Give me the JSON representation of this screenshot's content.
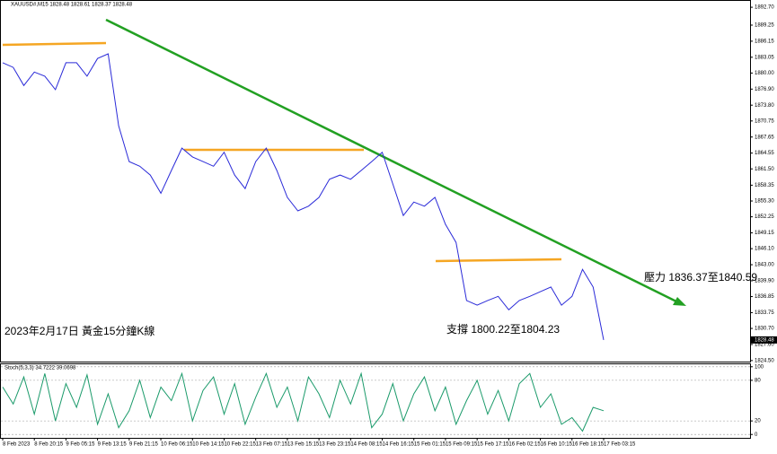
{
  "chart_data": [
    {
      "type": "line",
      "title": "XAUUSD#,M15  1828.48 1828.61 1828.37 1828.48",
      "color": "#2a2ad8",
      "categories": [
        "8 Feb 2023",
        null,
        null,
        "8 Feb 20:15",
        null,
        null,
        "9 Feb 05:15",
        null,
        null,
        "9 Feb 13:15",
        null,
        null,
        "9 Feb 21:15",
        null,
        null,
        "10 Feb 06:15",
        null,
        null,
        "10 Feb 14:15",
        null,
        null,
        "10 Feb 22:15",
        null,
        null,
        "13 Feb 07:15",
        null,
        null,
        "13 Feb 15:15",
        null,
        null,
        "13 Feb 23:15",
        null,
        null,
        "14 Feb 08:15",
        null,
        null,
        "14 Feb 16:15",
        null,
        null,
        "15 Feb 01:15",
        null,
        null,
        "15 Feb 09:15",
        null,
        null,
        "15 Feb 17:15",
        null,
        null,
        "16 Feb 02:15",
        null,
        null,
        "16 Feb 10:15",
        null,
        null,
        "16 Feb 18:15",
        null,
        null,
        "17 Feb 03:15"
      ],
      "values": [
        1882.0,
        1881.1,
        1877.6,
        1880.2,
        1879.4,
        1876.8,
        1882.0,
        1882.0,
        1879.4,
        1882.8,
        1883.7,
        1869.8,
        1862.9,
        1862.0,
        1860.3,
        1856.8,
        1861.2,
        1865.5,
        1863.8,
        1862.9,
        1862.0,
        1864.7,
        1860.3,
        1857.7,
        1862.9,
        1865.5,
        1861.2,
        1856.0,
        1853.4,
        1854.3,
        1856.0,
        1859.5,
        1860.3,
        1859.5,
        1861.2,
        1862.9,
        1864.7,
        1858.6,
        1852.5,
        1855.1,
        1854.3,
        1856.0,
        1850.8,
        1847.3,
        1836.1,
        1835.2,
        1836.1,
        1836.9,
        1834.3,
        1836.1,
        1836.9,
        1837.8,
        1838.7,
        1835.2,
        1836.9,
        1842.1,
        1838.7,
        1828.48
      ],
      "last_price": 1828.48,
      "ylim": [
        1824.3,
        1894.1
      ],
      "yticks": [
        {
          "value": 1892.7,
          "label": "1892.70"
        },
        1889.25,
        1886.15,
        1883.05,
        {
          "value": 1880,
          "label": "1880.00"
        },
        {
          "value": 1876.9,
          "label": "1876.90"
        },
        {
          "value": 1873.8,
          "label": "1873.80"
        },
        1870.75,
        1867.65,
        1864.55,
        {
          "value": 1861.5,
          "label": "1861.50"
        },
        1858.35,
        {
          "value": 1855.3,
          "label": "1855.30"
        },
        1852.25,
        1849.15,
        {
          "value": 1846.1,
          "label": "1846.10"
        },
        {
          "value": 1843,
          "label": "1843.00"
        },
        {
          "value": 1839.9,
          "label": "1839.90"
        },
        1836.85,
        1833.75,
        {
          "value": 1830.7,
          "label": "1830.70"
        },
        {
          "value": 1827.6,
          "label": "1827.60"
        },
        {
          "value": 1824.5,
          "label": "1824.50"
        }
      ],
      "annotations": [
        "壓力 1836.37至1840.59",
        "支撐 1800.22至1804.23",
        "2023年2月17日 黃金15分鐘K線"
      ]
    },
    {
      "type": "line",
      "title": "Stoch(5,3,3) 34.7222 39.0698",
      "color": "#1a9a6a",
      "values": [
        70,
        45,
        85,
        30,
        90,
        20,
        75,
        40,
        88,
        15,
        60,
        10,
        35,
        80,
        25,
        70,
        50,
        90,
        20,
        65,
        85,
        30,
        75,
        15,
        55,
        90,
        40,
        70,
        20,
        85,
        60,
        25,
        80,
        45,
        90,
        10,
        30,
        75,
        20,
        60,
        85,
        35,
        70,
        15,
        50,
        80,
        30,
        65,
        20,
        75,
        90,
        40,
        60,
        15,
        25,
        5,
        40,
        35
      ],
      "ylim": [
        -5,
        105
      ],
      "yticks": [
        100,
        80,
        20,
        0
      ],
      "grid": true
    }
  ]
}
